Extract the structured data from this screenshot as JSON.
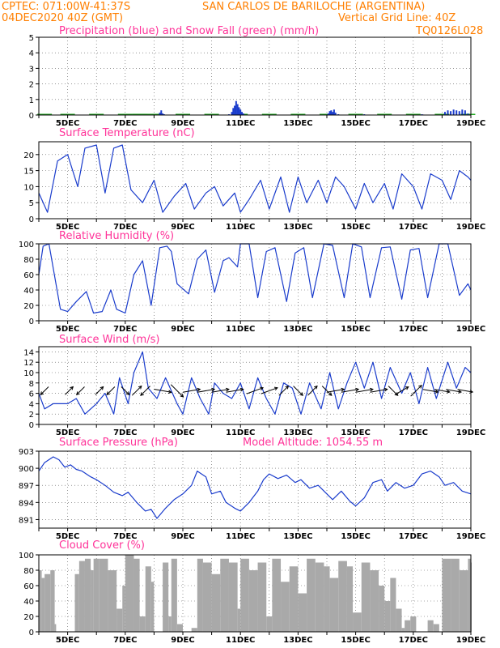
{
  "header": {
    "line1_left": "CPTEC:   071:00W-41:37S",
    "line1_right": "SAN CARLOS DE BARILOCHE (ARGENTINA)",
    "line2_left": "04DEC2020 40Z (GMT)",
    "line2_center": "Vertical Grid Line: 40Z",
    "line2_right": "TQ0126L028"
  },
  "colors": {
    "header": "#ff7f00",
    "panel_title": "#ff3399",
    "line": "#1a3ccc",
    "precip_bar": "#1a3ccc",
    "snow": "#22aa22",
    "cloud": "#a9a9a9",
    "wind_arrow": "#000000",
    "grid": "#555555"
  },
  "time_axis": {
    "start_day": 4.0,
    "end_day": 19.0,
    "tick_days": [
      5,
      7,
      9,
      11,
      13,
      15,
      17,
      19
    ],
    "tick_labels": [
      "5DEC",
      "7DEC",
      "9DEC",
      "11DEC",
      "13DEC",
      "15DEC",
      "17DEC",
      "19DEC"
    ]
  },
  "chart_data": [
    {
      "type": "bar",
      "id": "precip",
      "title": "Precipitation (blue) and Snow Fall (green) (mm/h)",
      "ylim": [
        0,
        5
      ],
      "yticks": [
        0,
        1,
        2,
        3,
        4,
        5
      ],
      "grid": true,
      "x": [
        4.2,
        5.0,
        6.0,
        7.0,
        7.6,
        8.2,
        8.25,
        8.3,
        8.35,
        9.0,
        10.6,
        10.7,
        10.75,
        10.8,
        10.85,
        10.9,
        10.95,
        11.0,
        11.05,
        11.1,
        12.0,
        14.05,
        14.1,
        14.15,
        14.2,
        14.25,
        14.3,
        14.4,
        15.0,
        15.3,
        16.0,
        17.3,
        17.35,
        18.1,
        18.2,
        18.3,
        18.4,
        18.5,
        18.6,
        18.7,
        18.8,
        18.9
      ],
      "values": [
        0,
        0,
        0,
        0,
        0.02,
        0.15,
        0.3,
        0.1,
        0.05,
        0,
        0.05,
        0.2,
        0.45,
        0.6,
        0.9,
        0.7,
        0.5,
        0.35,
        0.2,
        0.1,
        0,
        0.1,
        0.25,
        0.3,
        0.2,
        0.35,
        0.15,
        0.05,
        0.02,
        0.05,
        0,
        0.05,
        0.03,
        0.2,
        0.3,
        0.25,
        0.35,
        0.3,
        0.25,
        0.35,
        0.3,
        0.1
      ],
      "snow_x": [
        4.2,
        5.0,
        6.0,
        7.0,
        7.5,
        8.0,
        9.0,
        10.0,
        11.0,
        12.0,
        13.0,
        14.0,
        15.0,
        16.0,
        17.0,
        18.0,
        18.9
      ],
      "snow_values": [
        0,
        0.02,
        0.05,
        0.06,
        0.08,
        0.06,
        0.02,
        0.04,
        0.06,
        0.02,
        0.02,
        0.03,
        0.02,
        0.02,
        0.03,
        0.04,
        0.02
      ]
    },
    {
      "type": "line",
      "id": "temperature",
      "title": "Surface Temperature (nC)",
      "ylim": [
        0,
        24
      ],
      "yticks": [
        0,
        5,
        10,
        15,
        20
      ],
      "grid": true,
      "x": [
        4.0,
        4.3,
        4.65,
        5.0,
        5.35,
        5.6,
        6.0,
        6.3,
        6.6,
        6.9,
        7.2,
        7.6,
        8.0,
        8.3,
        8.7,
        9.1,
        9.4,
        9.8,
        10.1,
        10.4,
        10.8,
        11.0,
        11.3,
        11.7,
        12.0,
        12.4,
        12.7,
        13.0,
        13.3,
        13.7,
        14.0,
        14.3,
        14.6,
        15.0,
        15.3,
        15.6,
        16.0,
        16.3,
        16.6,
        17.0,
        17.3,
        17.6,
        18.0,
        18.3,
        18.6,
        18.9,
        19.0
      ],
      "values": [
        8,
        2,
        18,
        20,
        10,
        22,
        23,
        8,
        22,
        23,
        9,
        5,
        12,
        2,
        7,
        11,
        3,
        8,
        10,
        4,
        8,
        2,
        6,
        12,
        3,
        13,
        2,
        13,
        5,
        12,
        5,
        13,
        10,
        3,
        11,
        5,
        11,
        3,
        14,
        10,
        3,
        14,
        12,
        6,
        15,
        13,
        12
      ]
    },
    {
      "type": "line",
      "id": "humidity",
      "title": "Relative Humidity (%)",
      "ylim": [
        0,
        100
      ],
      "yticks": [
        0,
        20,
        40,
        60,
        80,
        100
      ],
      "grid": true,
      "x": [
        4.0,
        4.15,
        4.35,
        4.75,
        5.0,
        5.3,
        5.65,
        5.9,
        6.2,
        6.5,
        6.7,
        7.0,
        7.3,
        7.6,
        7.9,
        8.2,
        8.45,
        8.6,
        8.8,
        9.2,
        9.5,
        9.8,
        10.1,
        10.4,
        10.6,
        10.9,
        11.0,
        11.3,
        11.6,
        11.9,
        12.2,
        12.6,
        12.9,
        13.2,
        13.5,
        13.9,
        14.2,
        14.6,
        14.9,
        15.2,
        15.5,
        15.9,
        16.2,
        16.6,
        16.9,
        17.2,
        17.5,
        17.9,
        18.2,
        18.6,
        18.9,
        19.0
      ],
      "values": [
        60,
        97,
        100,
        15,
        12,
        25,
        38,
        10,
        12,
        40,
        15,
        10,
        60,
        78,
        20,
        95,
        97,
        90,
        48,
        35,
        80,
        92,
        37,
        78,
        82,
        70,
        100,
        100,
        30,
        90,
        95,
        25,
        88,
        95,
        30,
        100,
        98,
        30,
        100,
        96,
        30,
        95,
        96,
        28,
        92,
        94,
        30,
        100,
        100,
        33,
        48,
        40
      ]
    },
    {
      "type": "line",
      "id": "wind",
      "title": "Surface Wind (m/s)",
      "ylim": [
        0,
        15
      ],
      "yticks": [
        0,
        2,
        4,
        6,
        8,
        10,
        12,
        14
      ],
      "grid": true,
      "x": [
        4.0,
        4.2,
        4.5,
        5.0,
        5.3,
        5.6,
        6.0,
        6.3,
        6.6,
        6.8,
        7.1,
        7.3,
        7.6,
        7.8,
        8.1,
        8.4,
        8.8,
        9.0,
        9.3,
        9.6,
        9.9,
        10.1,
        10.4,
        10.7,
        11.0,
        11.3,
        11.6,
        11.9,
        12.2,
        12.5,
        12.8,
        13.1,
        13.4,
        13.8,
        14.1,
        14.4,
        14.7,
        15.0,
        15.3,
        15.6,
        15.9,
        16.2,
        16.6,
        16.9,
        17.2,
        17.5,
        17.8,
        18.2,
        18.5,
        18.8,
        19.0
      ],
      "values": [
        6,
        3,
        4,
        4,
        5,
        2,
        4,
        6,
        2,
        9,
        4,
        10,
        14,
        7,
        5,
        9,
        4,
        2,
        9,
        5,
        2,
        8,
        6,
        5,
        8,
        3,
        9,
        5,
        2,
        8,
        7,
        2,
        8,
        3,
        10,
        3,
        8,
        12,
        7,
        12,
        5,
        11,
        6,
        10,
        4,
        11,
        5,
        12,
        7,
        11,
        10
      ],
      "arrows": [
        {
          "day": 4.2,
          "dir": 225,
          "speed": 3
        },
        {
          "day": 5.05,
          "dir": 45,
          "speed": 3
        },
        {
          "day": 5.45,
          "dir": 225,
          "speed": 3
        },
        {
          "day": 6.1,
          "dir": 45,
          "speed": 3
        },
        {
          "day": 6.5,
          "dir": 225,
          "speed": 3
        },
        {
          "day": 7.0,
          "dir": 135,
          "speed": 3
        },
        {
          "day": 7.4,
          "dir": 45,
          "speed": 4
        },
        {
          "day": 7.7,
          "dir": 225,
          "speed": 4
        },
        {
          "day": 8.3,
          "dir": 100,
          "speed": 6
        },
        {
          "day": 8.8,
          "dir": 135,
          "speed": 6
        },
        {
          "day": 9.3,
          "dir": 80,
          "speed": 6
        },
        {
          "day": 9.8,
          "dir": 80,
          "speed": 6
        },
        {
          "day": 10.3,
          "dir": 80,
          "speed": 6
        },
        {
          "day": 10.8,
          "dir": 80,
          "speed": 6
        },
        {
          "day": 11.5,
          "dir": 70,
          "speed": 6
        },
        {
          "day": 12.0,
          "dir": 70,
          "speed": 6
        },
        {
          "day": 12.5,
          "dir": 45,
          "speed": 4
        },
        {
          "day": 13.0,
          "dir": 135,
          "speed": 4
        },
        {
          "day": 13.5,
          "dir": 45,
          "speed": 4
        },
        {
          "day": 14.0,
          "dir": 135,
          "speed": 4
        },
        {
          "day": 14.3,
          "dir": 80,
          "speed": 6
        },
        {
          "day": 14.8,
          "dir": 80,
          "speed": 6
        },
        {
          "day": 15.3,
          "dir": 80,
          "speed": 6
        },
        {
          "day": 15.8,
          "dir": 80,
          "speed": 6
        },
        {
          "day": 16.3,
          "dir": 135,
          "speed": 4
        },
        {
          "day": 16.6,
          "dir": 60,
          "speed": 5
        },
        {
          "day": 17.1,
          "dir": 45,
          "speed": 5
        },
        {
          "day": 17.6,
          "dir": 100,
          "speed": 5
        },
        {
          "day": 18.0,
          "dir": 100,
          "speed": 5
        },
        {
          "day": 18.4,
          "dir": 100,
          "speed": 5
        },
        {
          "day": 18.8,
          "dir": 100,
          "speed": 5
        }
      ]
    },
    {
      "type": "line",
      "id": "pressure",
      "title": "Surface Pressure (hPa)",
      "subtitle": "Model Altitude: 1054.55 m",
      "ylim": [
        889.5,
        903
      ],
      "yticks": [
        891,
        894,
        897,
        900,
        903
      ],
      "grid": true,
      "x": [
        4.0,
        4.2,
        4.5,
        4.7,
        4.9,
        5.1,
        5.3,
        5.5,
        5.8,
        6.0,
        6.3,
        6.6,
        6.9,
        7.1,
        7.4,
        7.7,
        7.9,
        8.1,
        8.4,
        8.7,
        9.0,
        9.3,
        9.5,
        9.8,
        10.0,
        10.3,
        10.5,
        10.8,
        11.0,
        11.3,
        11.6,
        11.8,
        12.0,
        12.3,
        12.6,
        12.9,
        13.1,
        13.4,
        13.7,
        14.0,
        14.2,
        14.5,
        14.8,
        15.0,
        15.3,
        15.6,
        15.9,
        16.1,
        16.4,
        16.7,
        17.0,
        17.3,
        17.6,
        17.9,
        18.1,
        18.4,
        18.7,
        19.0
      ],
      "values": [
        899.5,
        901.0,
        902.0,
        901.5,
        900.2,
        900.6,
        899.8,
        899.5,
        898.5,
        898.0,
        897.0,
        895.8,
        895.2,
        895.8,
        894.0,
        892.5,
        892.8,
        891.2,
        893.0,
        894.5,
        895.5,
        897.0,
        899.5,
        898.5,
        895.5,
        896.0,
        894.0,
        893.0,
        892.5,
        894.0,
        896.0,
        898.0,
        899.0,
        898.2,
        898.8,
        897.5,
        898.0,
        896.5,
        897.0,
        895.5,
        894.5,
        896.0,
        894.2,
        893.4,
        894.8,
        897.5,
        898.0,
        896.0,
        897.5,
        896.5,
        897.0,
        899.0,
        899.5,
        898.5,
        897.0,
        897.5,
        896.0,
        895.5
      ]
    },
    {
      "type": "area",
      "id": "cloud",
      "title": "Cloud Cover (%)",
      "ylim": [
        0,
        100
      ],
      "yticks": [
        0,
        20,
        40,
        60,
        80,
        100
      ],
      "grid": true,
      "x": [
        4.0,
        4.1,
        4.2,
        4.4,
        4.55,
        4.6,
        5.0,
        5.2,
        5.25,
        5.4,
        5.6,
        5.8,
        5.9,
        6.1,
        6.4,
        6.7,
        6.9,
        7.0,
        7.3,
        7.5,
        7.7,
        7.9,
        8.0,
        8.3,
        8.5,
        8.6,
        8.8,
        9.0,
        9.3,
        9.5,
        9.7,
        10.0,
        10.3,
        10.6,
        10.9,
        11.0,
        11.3,
        11.6,
        11.9,
        12.1,
        12.4,
        12.7,
        13.0,
        13.3,
        13.6,
        13.9,
        14.1,
        14.4,
        14.7,
        14.9,
        15.2,
        15.5,
        15.8,
        16.0,
        16.2,
        16.4,
        16.6,
        16.7,
        16.9,
        17.1,
        17.2,
        17.5,
        17.7,
        17.9,
        18.0,
        18.3,
        18.6,
        18.9,
        19.0
      ],
      "values": [
        80,
        70,
        75,
        80,
        10,
        0,
        0,
        0,
        75,
        92,
        95,
        80,
        95,
        95,
        80,
        30,
        60,
        100,
        95,
        20,
        85,
        65,
        0,
        90,
        20,
        95,
        10,
        0,
        5,
        95,
        90,
        75,
        95,
        90,
        30,
        95,
        80,
        90,
        20,
        95,
        65,
        85,
        50,
        95,
        90,
        85,
        70,
        92,
        85,
        25,
        90,
        80,
        60,
        40,
        70,
        30,
        5,
        15,
        20,
        0,
        0,
        15,
        10,
        0,
        95,
        95,
        80,
        95,
        90
      ]
    }
  ]
}
